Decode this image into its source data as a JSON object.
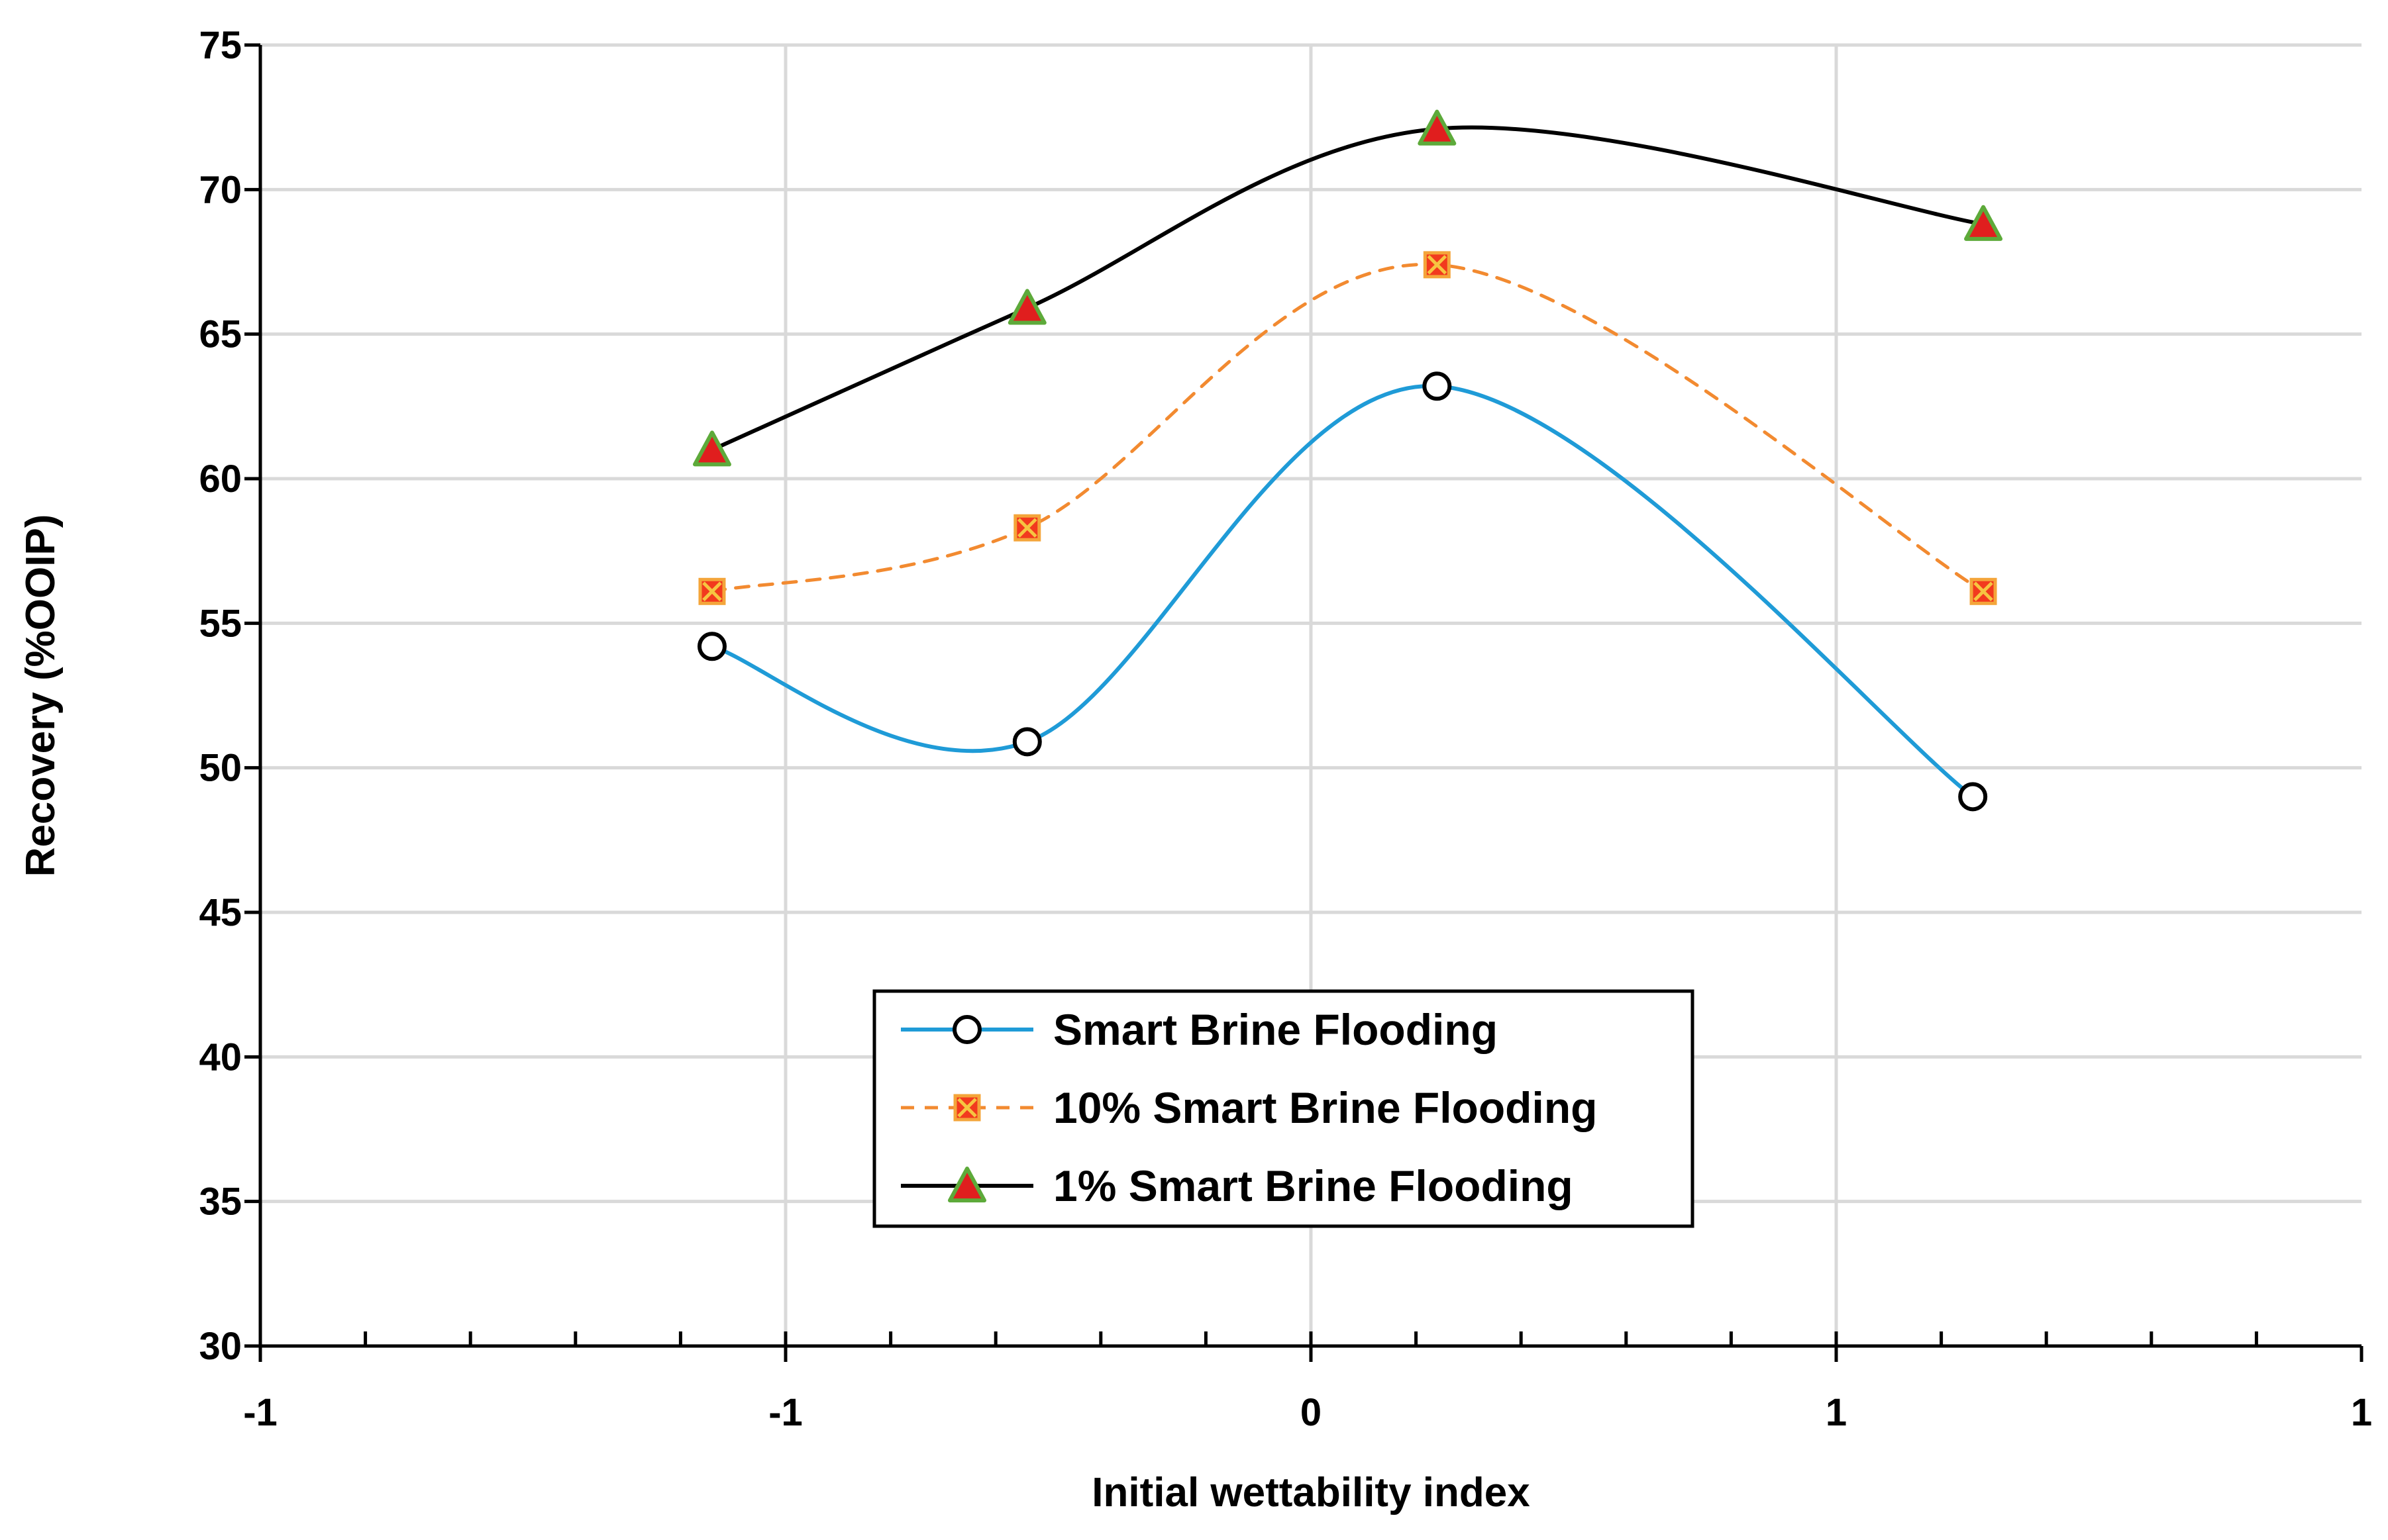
{
  "chart_data": {
    "type": "line",
    "title": "",
    "xlabel": "Initial wettability index",
    "ylabel": "Recovery (%OOIP)",
    "xlim": [
      -1,
      1
    ],
    "ylim": [
      30,
      75
    ],
    "x_ticks": [
      -1,
      -0.5,
      0,
      0.5,
      1
    ],
    "x_tick_labels": [
      "-1",
      "-1",
      "0",
      "1",
      "1"
    ],
    "y_ticks": [
      30,
      35,
      40,
      45,
      50,
      55,
      60,
      65,
      70,
      75
    ],
    "y_tick_labels": [
      "30",
      "35",
      "40",
      "45",
      "50",
      "55",
      "60",
      "65",
      "70",
      "75"
    ],
    "grid": true,
    "legend_position": "bottom-center",
    "series": [
      {
        "name": "Smart Brine Flooding",
        "color": "#1F9BD7",
        "line_style": "solid",
        "marker": "circle",
        "x": [
          -0.57,
          -0.27,
          0.12,
          0.63
        ],
        "y": [
          54.2,
          50.9,
          63.2,
          49.0
        ]
      },
      {
        "name": "10% Smart Brine Flooding",
        "color": "#F28A30",
        "line_style": "dashed",
        "marker": "square-x",
        "x": [
          -0.57,
          -0.27,
          0.12,
          0.64
        ],
        "y": [
          56.1,
          58.3,
          67.4,
          56.1
        ]
      },
      {
        "name": "1% Smart Brine Flooding",
        "color": "#000000",
        "line_style": "solid",
        "marker": "triangle",
        "x": [
          -0.57,
          -0.27,
          0.12,
          0.64
        ],
        "y": [
          61.0,
          65.9,
          72.1,
          68.8
        ]
      }
    ]
  }
}
